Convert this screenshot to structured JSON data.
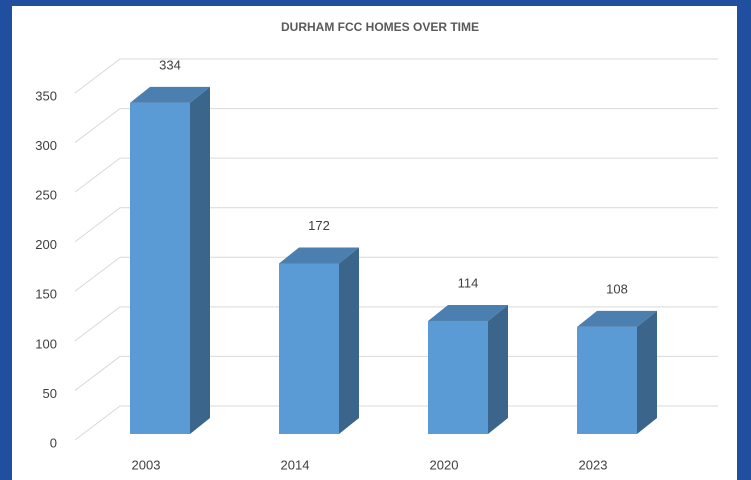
{
  "chart_data": {
    "type": "bar3d",
    "title": "DURHAM FCC HOMES OVER TIME",
    "categories": [
      "2003",
      "2014",
      "2020",
      "2023"
    ],
    "values": [
      334,
      172,
      114,
      108
    ],
    "color": "#5b9bd5",
    "ylim": [
      0,
      350
    ],
    "yticks": [
      0,
      50,
      100,
      150,
      200,
      250,
      300,
      350
    ],
    "grid": true
  }
}
